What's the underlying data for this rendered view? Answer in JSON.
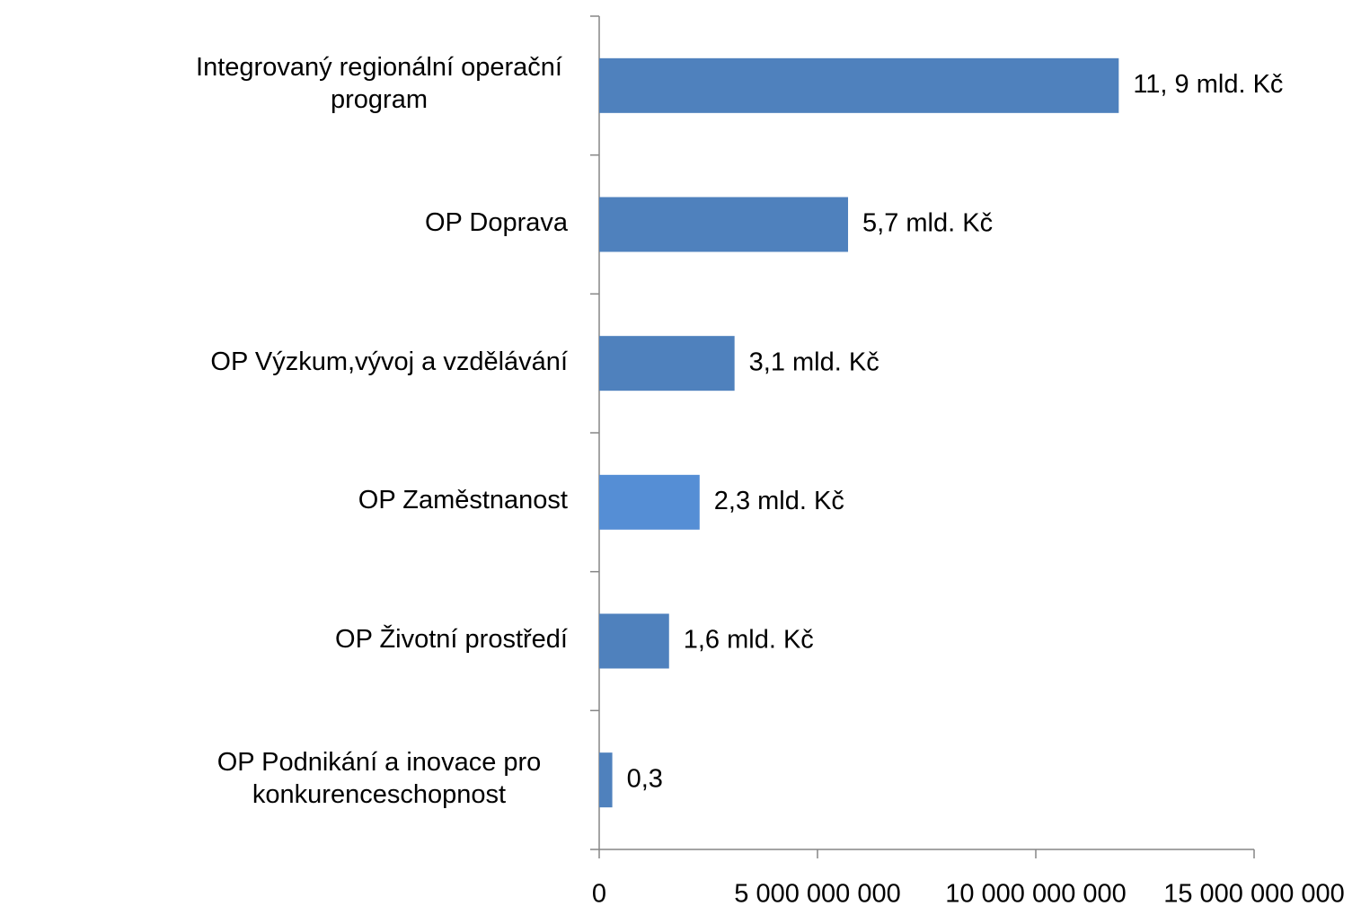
{
  "chart_data": {
    "type": "barh",
    "categories": [
      "Integrovaný regionální operační program",
      "OP Doprava",
      "OP Výzkum,vývoj a vzdělávání",
      "OP Zaměstnanost",
      "OP Životní prostředí",
      "OP Podnikání a inovace pro konkurenceschopnost"
    ],
    "values": [
      11900000000,
      5700000000,
      3100000000,
      2300000000,
      1600000000,
      300000000
    ],
    "value_labels": [
      "11, 9 mld. Kč",
      "5,7 mld. Kč",
      "3,1 mld. Kč",
      "2,3 mld. Kč",
      "1,6 mld. Kč",
      "0,3"
    ],
    "colors": [
      "#4f81bd",
      "#4f81bd",
      "#4f81bd",
      "#558ed5",
      "#4f81bd",
      "#4f81bd"
    ],
    "xlim": [
      0,
      15000000000
    ],
    "xticks": [
      0,
      {
        "value": 5000000000,
        "label": "5 000 000 000"
      },
      {
        "value": 10000000000,
        "label": "10 000 000 000"
      },
      {
        "value": 15000000000,
        "label": "15 000 000 000"
      }
    ]
  }
}
